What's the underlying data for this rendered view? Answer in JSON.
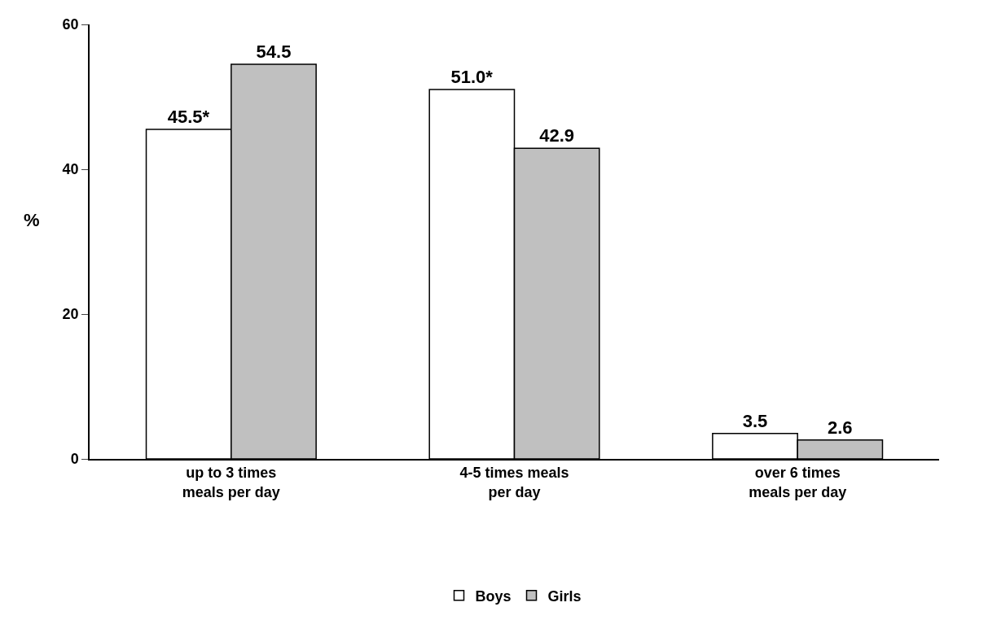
{
  "chart_data": {
    "type": "bar",
    "ylabel": "%",
    "categories": [
      "up to 3 times\nmeals per day",
      "4-5 times meals\nper day",
      "over 6 times\nmeals per day"
    ],
    "series": [
      {
        "name": "Boys",
        "color": "#ffffff",
        "values": [
          45.5,
          51.0,
          3.5
        ],
        "value_labels": [
          "45.5*",
          "51.0*",
          "3.5"
        ]
      },
      {
        "name": "Girls",
        "color": "#c0c0c0",
        "values": [
          54.5,
          42.9,
          2.6
        ],
        "value_labels": [
          "54.5",
          "42.9",
          "2.6"
        ]
      }
    ],
    "ylim": [
      0,
      60
    ],
    "yticks": [
      0,
      20,
      40,
      60
    ],
    "legend": "bottom"
  }
}
